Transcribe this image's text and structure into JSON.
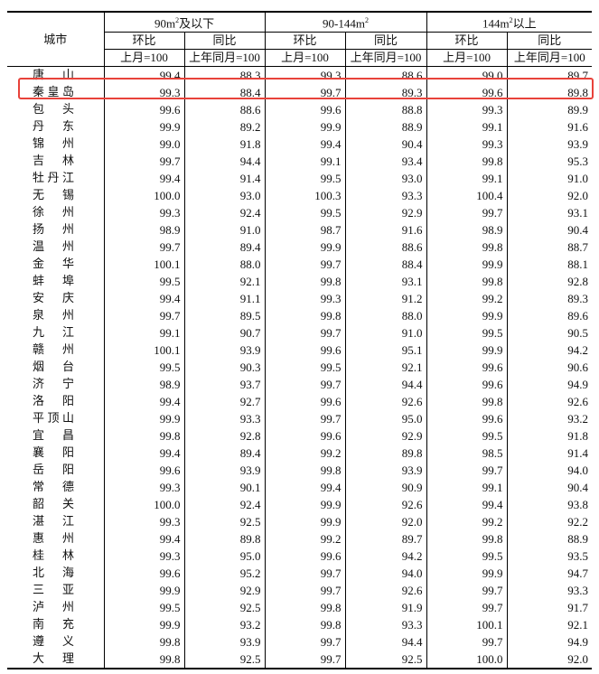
{
  "header": {
    "city": "城市",
    "groups": [
      {
        "label": "90m",
        "sup": "2",
        "suffix": "及以下"
      },
      {
        "label": "90-144m",
        "sup": "2",
        "suffix": ""
      },
      {
        "label": "144m",
        "sup": "2",
        "suffix": "以上"
      }
    ],
    "mom": "环比",
    "yoy": "同比",
    "mom_base": "上月=100",
    "yoy_base": "上年同月=100"
  },
  "highlight": {
    "city": "秦皇岛",
    "color": "#e8423a"
  },
  "rows": [
    [
      "唐山",
      "99.4",
      "88.3",
      "99.3",
      "88.6",
      "99.0",
      "89.7"
    ],
    [
      "秦皇岛",
      "99.3",
      "88.4",
      "99.7",
      "89.3",
      "99.6",
      "89.8"
    ],
    [
      "包头",
      "99.6",
      "88.6",
      "99.6",
      "88.8",
      "99.3",
      "89.9"
    ],
    [
      "丹东",
      "99.9",
      "89.2",
      "99.9",
      "88.9",
      "99.1",
      "91.6"
    ],
    [
      "锦州",
      "99.0",
      "91.8",
      "99.4",
      "90.4",
      "99.3",
      "93.9"
    ],
    [
      "吉林",
      "99.7",
      "94.4",
      "99.1",
      "93.4",
      "99.8",
      "95.3"
    ],
    [
      "牡丹江",
      "99.4",
      "91.4",
      "99.5",
      "93.0",
      "99.1",
      "91.0"
    ],
    [
      "无锡",
      "100.0",
      "93.0",
      "100.3",
      "93.3",
      "100.4",
      "92.0"
    ],
    [
      "徐州",
      "99.3",
      "92.4",
      "99.5",
      "92.9",
      "99.7",
      "93.1"
    ],
    [
      "扬州",
      "98.9",
      "91.0",
      "98.7",
      "91.6",
      "98.9",
      "90.4"
    ],
    [
      "温州",
      "99.7",
      "89.4",
      "99.9",
      "88.6",
      "99.8",
      "88.7"
    ],
    [
      "金华",
      "100.1",
      "88.0",
      "99.7",
      "88.4",
      "99.9",
      "88.1"
    ],
    [
      "蚌埠",
      "99.5",
      "92.1",
      "99.8",
      "93.1",
      "99.8",
      "92.8"
    ],
    [
      "安庆",
      "99.4",
      "91.1",
      "99.3",
      "91.2",
      "99.2",
      "89.3"
    ],
    [
      "泉州",
      "99.7",
      "89.5",
      "99.8",
      "88.0",
      "99.9",
      "89.6"
    ],
    [
      "九江",
      "99.1",
      "90.7",
      "99.7",
      "91.0",
      "99.5",
      "90.5"
    ],
    [
      "赣州",
      "100.1",
      "93.9",
      "99.6",
      "95.1",
      "99.9",
      "94.2"
    ],
    [
      "烟台",
      "99.5",
      "90.3",
      "99.5",
      "92.1",
      "99.6",
      "90.6"
    ],
    [
      "济宁",
      "98.9",
      "93.7",
      "99.7",
      "94.4",
      "99.6",
      "94.9"
    ],
    [
      "洛阳",
      "99.4",
      "92.7",
      "99.6",
      "92.6",
      "99.8",
      "92.6"
    ],
    [
      "平顶山",
      "99.9",
      "93.3",
      "99.7",
      "95.0",
      "99.6",
      "93.2"
    ],
    [
      "宜昌",
      "99.8",
      "92.8",
      "99.6",
      "92.9",
      "99.5",
      "91.8"
    ],
    [
      "襄阳",
      "99.4",
      "89.4",
      "99.2",
      "89.8",
      "98.5",
      "91.4"
    ],
    [
      "岳阳",
      "99.6",
      "93.9",
      "99.8",
      "93.9",
      "99.7",
      "94.0"
    ],
    [
      "常德",
      "99.3",
      "90.1",
      "99.4",
      "90.9",
      "99.1",
      "90.4"
    ],
    [
      "韶关",
      "100.0",
      "92.4",
      "99.9",
      "92.6",
      "99.4",
      "93.8"
    ],
    [
      "湛江",
      "99.3",
      "92.5",
      "99.9",
      "92.0",
      "99.2",
      "92.2"
    ],
    [
      "惠州",
      "99.4",
      "89.8",
      "99.2",
      "89.7",
      "99.8",
      "88.9"
    ],
    [
      "桂林",
      "99.3",
      "95.0",
      "99.6",
      "94.2",
      "99.5",
      "93.5"
    ],
    [
      "北海",
      "99.6",
      "95.2",
      "99.7",
      "94.0",
      "99.9",
      "94.7"
    ],
    [
      "三亚",
      "99.9",
      "92.9",
      "99.7",
      "92.6",
      "99.7",
      "93.3"
    ],
    [
      "泸州",
      "99.5",
      "92.5",
      "99.8",
      "91.9",
      "99.7",
      "91.7"
    ],
    [
      "南充",
      "99.9",
      "93.2",
      "99.8",
      "93.3",
      "100.1",
      "92.1"
    ],
    [
      "遵义",
      "99.8",
      "93.9",
      "99.7",
      "94.4",
      "99.7",
      "94.9"
    ],
    [
      "大理",
      "99.8",
      "92.5",
      "99.7",
      "92.5",
      "100.0",
      "92.0"
    ]
  ]
}
